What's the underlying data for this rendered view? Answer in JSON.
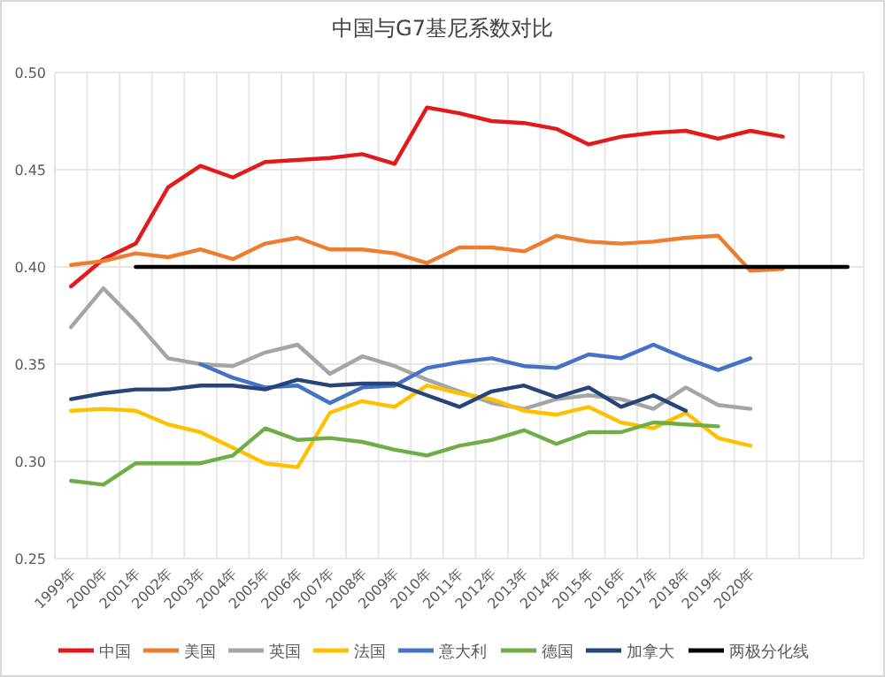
{
  "chart_data": {
    "type": "line",
    "title": "中国与G7基尼系数对比",
    "categories": [
      "1999年",
      "2000年",
      "2001年",
      "2002年",
      "2003年",
      "2004年",
      "2005年",
      "2006年",
      "2007年",
      "2008年",
      "2009年",
      "2010年",
      "2011年",
      "2012年",
      "2013年",
      "2014年",
      "2015年",
      "2016年",
      "2017年",
      "2018年",
      "2019年",
      "2020年",
      null,
      null,
      null
    ],
    "series": [
      {
        "name": "中国",
        "color": "#e31a1c",
        "values": [
          0.39,
          0.404,
          0.412,
          0.441,
          0.452,
          0.446,
          0.454,
          0.455,
          0.456,
          0.458,
          0.453,
          0.482,
          0.479,
          0.475,
          0.474,
          0.471,
          0.463,
          0.467,
          0.469,
          0.47,
          0.466,
          0.47,
          0.467,
          null,
          null
        ]
      },
      {
        "name": "美国",
        "color": "#ed7d31",
        "values": [
          0.401,
          0.403,
          0.407,
          0.405,
          0.409,
          0.404,
          0.412,
          0.415,
          0.409,
          0.409,
          0.407,
          0.402,
          0.41,
          0.41,
          0.408,
          0.416,
          0.413,
          0.412,
          0.413,
          0.415,
          0.416,
          0.398,
          0.399,
          null,
          null
        ]
      },
      {
        "name": "英国",
        "color": "#a5a5a5",
        "values": [
          0.369,
          0.389,
          0.372,
          0.353,
          0.35,
          0.349,
          0.356,
          0.36,
          0.345,
          0.354,
          0.349,
          0.342,
          0.336,
          0.33,
          0.327,
          0.332,
          0.334,
          0.332,
          0.327,
          0.338,
          0.329,
          0.327,
          null,
          null,
          null
        ]
      },
      {
        "name": "法国",
        "color": "#ffc000",
        "values": [
          0.326,
          0.327,
          0.326,
          0.319,
          0.315,
          0.307,
          0.299,
          0.297,
          0.325,
          0.331,
          0.328,
          0.339,
          0.335,
          0.332,
          0.326,
          0.324,
          0.328,
          0.32,
          0.317,
          0.325,
          0.312,
          0.308,
          null,
          null,
          null
        ]
      },
      {
        "name": "意大利",
        "color": "#4472c4",
        "values": [
          null,
          null,
          null,
          null,
          0.35,
          0.343,
          0.338,
          0.339,
          0.33,
          0.338,
          0.339,
          0.348,
          0.351,
          0.353,
          0.349,
          0.348,
          0.355,
          0.353,
          0.36,
          0.353,
          0.347,
          0.353,
          null,
          null,
          null
        ]
      },
      {
        "name": "德国",
        "color": "#70ad47",
        "values": [
          0.29,
          0.288,
          0.299,
          0.299,
          0.299,
          0.303,
          0.317,
          0.311,
          0.312,
          0.31,
          0.306,
          0.303,
          0.308,
          0.311,
          0.316,
          0.309,
          0.315,
          0.315,
          0.32,
          0.319,
          0.318,
          null,
          null,
          null,
          null
        ]
      },
      {
        "name": "加拿大",
        "color": "#264478",
        "values": [
          0.332,
          0.335,
          0.337,
          0.337,
          0.339,
          0.339,
          0.337,
          0.342,
          0.339,
          0.34,
          0.34,
          0.334,
          0.328,
          0.336,
          0.339,
          0.333,
          0.338,
          0.328,
          0.334,
          0.326,
          null,
          null,
          null,
          null,
          null
        ]
      },
      {
        "name": "两极分化线",
        "color": "#000000",
        "values": [
          null,
          null,
          0.4,
          0.4,
          0.4,
          0.4,
          0.4,
          0.4,
          0.4,
          0.4,
          0.4,
          0.4,
          0.4,
          0.4,
          0.4,
          0.4,
          0.4,
          0.4,
          0.4,
          0.4,
          0.4,
          0.4,
          0.4,
          0.4,
          0.4
        ]
      }
    ],
    "ylim": [
      0.25,
      0.5
    ],
    "yticks": [
      0.25,
      {
        "value": 0.3,
        "label": "0.30"
      },
      0.35,
      {
        "value": 0.4,
        "label": "0.40"
      },
      0.45,
      {
        "value": 0.5,
        "label": "0.50"
      }
    ],
    "grid": true,
    "legend": "bottom",
    "marker": "none",
    "line_style": "solid"
  }
}
